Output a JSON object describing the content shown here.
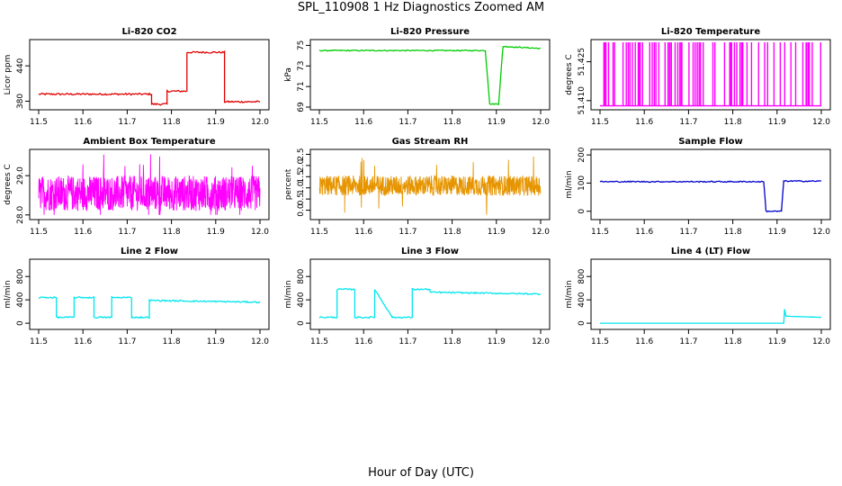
{
  "figure_title": "SPL_110908  1 Hz Diagnostics Zoomed AM",
  "x_caption": "Hour of Day (UTC)",
  "chart_data": [
    {
      "type": "line",
      "title": "Li-820 CO2",
      "ylabel": "Licor ppm",
      "xlabel": "",
      "color": "#e00000",
      "ylim": [
        370,
        480
      ],
      "xlim": [
        11.5,
        12.0
      ],
      "xticks": [
        "11.5",
        "11.6",
        "11.7",
        "11.8",
        "11.9",
        "12.0"
      ],
      "yticks": [
        "380",
        "440"
      ],
      "ytick_values": [
        380,
        440
      ],
      "noise": 1.5,
      "points": [
        [
          11.5,
          392
        ],
        [
          11.755,
          392
        ],
        [
          11.755,
          375
        ],
        [
          11.79,
          375
        ],
        [
          11.79,
          397
        ],
        [
          11.835,
          397
        ],
        [
          11.835,
          463
        ],
        [
          11.92,
          463
        ],
        [
          11.92,
          379
        ],
        [
          12.0,
          379
        ]
      ]
    },
    {
      "type": "line",
      "title": "Li-820 Pressure",
      "ylabel": "kPa",
      "xlabel": "",
      "color": "#00cc00",
      "ylim": [
        69,
        75.3
      ],
      "xlim": [
        11.5,
        12.0
      ],
      "xticks": [
        "11.5",
        "11.6",
        "11.7",
        "11.8",
        "11.9",
        "12.0"
      ],
      "yticks": [
        "69",
        "71",
        "73",
        "75"
      ],
      "ytick_values": [
        69,
        71,
        73,
        75
      ],
      "noise": 0.05,
      "points": [
        [
          11.5,
          74.5
        ],
        [
          11.875,
          74.5
        ],
        [
          11.885,
          69.3
        ],
        [
          11.905,
          69.3
        ],
        [
          11.915,
          74.9
        ],
        [
          12.0,
          74.7
        ]
      ]
    },
    {
      "type": "spikes",
      "title": "Li-820 Temperature",
      "ylabel": "degrees C",
      "xlabel": "",
      "color": "#ff00ff",
      "ylim": [
        51.4075,
        51.4325
      ],
      "xlim": [
        11.5,
        12.0
      ],
      "xticks": [
        "11.5",
        "11.6",
        "11.7",
        "11.8",
        "11.9",
        "12.0"
      ],
      "yticks": [
        "51.410",
        "51.425"
      ],
      "ytick_values": [
        51.41,
        51.425
      ],
      "low": 51.408,
      "high": 51.4325
    },
    {
      "type": "noise-band",
      "title": "Ambient Box Temperature",
      "ylabel": "degrees C",
      "xlabel": "",
      "color": "#ff00ff",
      "ylim": [
        27.95,
        29.6
      ],
      "xlim": [
        11.5,
        12.0
      ],
      "xticks": [
        "11.5",
        "11.6",
        "11.7",
        "11.8",
        "11.9",
        "12.0"
      ],
      "yticks": [
        "28.0",
        "29.0"
      ],
      "ytick_values": [
        28.0,
        29.0
      ],
      "center": 28.55,
      "spread": 0.45,
      "outlier_max": 29.55,
      "outlier_min": 28.0
    },
    {
      "type": "noise-band",
      "title": "Gas Stream RH",
      "ylabel": "percent",
      "xlabel": "",
      "color": "#e69500",
      "ylim": [
        -0.3,
        2.6
      ],
      "xlim": [
        11.5,
        12.0
      ],
      "xticks": [
        "11.5",
        "11.6",
        "11.7",
        "11.8",
        "11.9",
        "12.0"
      ],
      "yticks": [
        "0.0",
        "0.5",
        "1.0",
        "1.5",
        "2.0",
        "2.5"
      ],
      "ytick_values": [
        0,
        0.5,
        1.0,
        1.5,
        2.0,
        2.5
      ],
      "center": 1.1,
      "spread": 0.45,
      "outlier_max": 2.5,
      "outlier_min": -0.2
    },
    {
      "type": "line",
      "title": "Sample Flow",
      "ylabel": "ml/min",
      "xlabel": "",
      "color": "#0000cc",
      "ylim": [
        -20,
        210
      ],
      "xlim": [
        11.5,
        12.0
      ],
      "xticks": [
        "11.5",
        "11.6",
        "11.7",
        "11.8",
        "11.9",
        "12.0"
      ],
      "yticks": [
        "0",
        "100",
        "200"
      ],
      "ytick_values": [
        0,
        100,
        200
      ],
      "noise": 2,
      "points": [
        [
          11.5,
          105
        ],
        [
          11.87,
          105
        ],
        [
          11.875,
          0
        ],
        [
          11.91,
          0
        ],
        [
          11.915,
          107
        ],
        [
          12.0,
          107
        ]
      ]
    },
    {
      "type": "line",
      "title": "Line 2 Flow",
      "ylabel": "ml/min",
      "xlabel": "",
      "color": "#00e5ee",
      "ylim": [
        -60,
        1050
      ],
      "xlim": [
        11.5,
        12.0
      ],
      "xticks": [
        "11.5",
        "11.6",
        "11.7",
        "11.8",
        "11.9",
        "12.0"
      ],
      "yticks": [
        "0",
        "400",
        "800"
      ],
      "ytick_values": [
        0,
        400,
        800
      ],
      "noise": 12,
      "points": [
        [
          11.5,
          440
        ],
        [
          11.54,
          440
        ],
        [
          11.54,
          100
        ],
        [
          11.58,
          100
        ],
        [
          11.58,
          440
        ],
        [
          11.625,
          440
        ],
        [
          11.625,
          100
        ],
        [
          11.665,
          100
        ],
        [
          11.665,
          440
        ],
        [
          11.71,
          440
        ],
        [
          11.71,
          100
        ],
        [
          11.75,
          100
        ],
        [
          11.75,
          390
        ],
        [
          12.0,
          360
        ]
      ]
    },
    {
      "type": "line",
      "title": "Line 3 Flow",
      "ylabel": "ml/min",
      "xlabel": "",
      "color": "#00e5ee",
      "ylim": [
        -60,
        1050
      ],
      "xlim": [
        11.5,
        12.0
      ],
      "xticks": [
        "11.5",
        "11.6",
        "11.7",
        "11.8",
        "11.9",
        "12.0"
      ],
      "yticks": [
        "0",
        "400",
        "800"
      ],
      "ytick_values": [
        0,
        400,
        800
      ],
      "noise": 12,
      "points": [
        [
          11.5,
          100
        ],
        [
          11.54,
          100
        ],
        [
          11.54,
          580
        ],
        [
          11.58,
          580
        ],
        [
          11.58,
          100
        ],
        [
          11.625,
          100
        ],
        [
          11.625,
          580
        ],
        [
          11.665,
          100
        ],
        [
          11.665,
          100
        ],
        [
          11.71,
          100
        ],
        [
          11.71,
          580
        ],
        [
          11.75,
          580
        ],
        [
          11.75,
          530
        ],
        [
          12.0,
          500
        ]
      ]
    },
    {
      "type": "line",
      "title": "Line 4 (LT) Flow",
      "ylabel": "ml/min",
      "xlabel": "",
      "color": "#00e5ee",
      "ylim": [
        -60,
        1050
      ],
      "xlim": [
        11.5,
        12.0
      ],
      "xticks": [
        "11.5",
        "11.6",
        "11.7",
        "11.8",
        "11.9",
        "12.0"
      ],
      "yticks": [
        "0",
        "400",
        "800"
      ],
      "ytick_values": [
        0,
        400,
        800
      ],
      "noise": 0,
      "points": [
        [
          11.5,
          0
        ],
        [
          11.915,
          0
        ],
        [
          11.917,
          240
        ],
        [
          11.92,
          120
        ],
        [
          12.0,
          100
        ]
      ]
    }
  ]
}
